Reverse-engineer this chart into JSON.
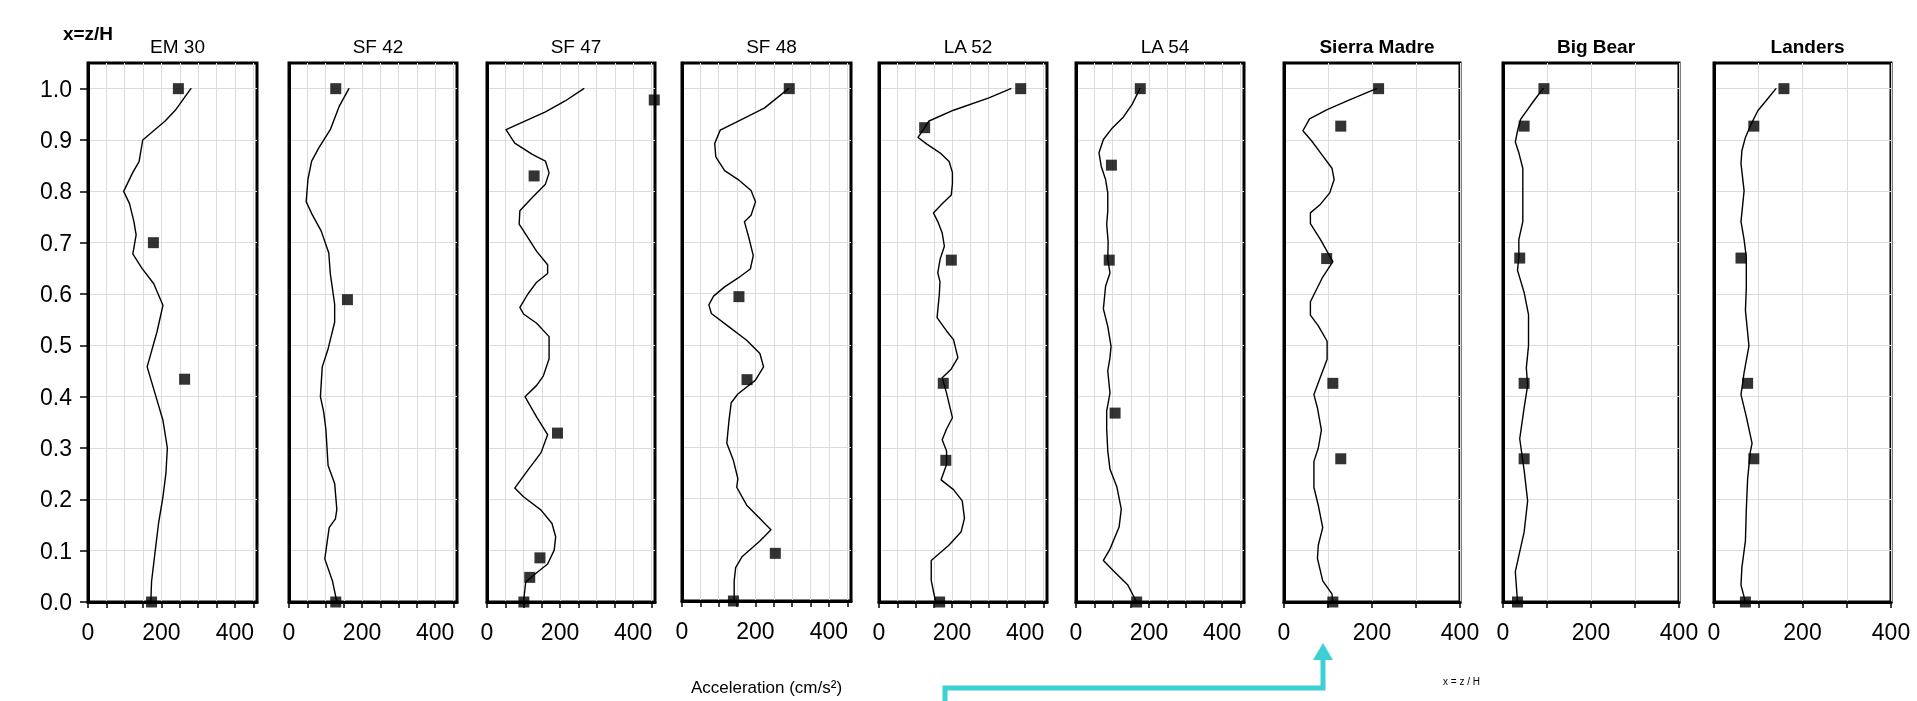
{
  "chart_data": [
    {
      "type": "line",
      "title": "EM 30",
      "ylabel": "x=z/H",
      "xlim": [
        0,
        460
      ],
      "ylim": [
        0,
        1.05
      ],
      "grid": true,
      "xticks": [
        0,
        {
          "value": 50,
          "label": null
        },
        {
          "value": 100,
          "label": null
        },
        {
          "value": 150,
          "label": null
        },
        200,
        {
          "value": 250,
          "label": null
        },
        {
          "value": 300,
          "label": null
        },
        {
          "value": 350,
          "label": null
        },
        400,
        {
          "value": 450,
          "label": null
        }
      ],
      "yticks": [
        {
          "value": 0,
          "label": "0.0"
        },
        {
          "value": 0.1,
          "label": "0.1"
        },
        {
          "value": 0.2,
          "label": "0.2"
        },
        {
          "value": 0.3,
          "label": "0.3"
        },
        {
          "value": 0.4,
          "label": "0.4"
        },
        {
          "value": 0.5,
          "label": "0.5"
        },
        {
          "value": 0.6,
          "label": "0.6"
        },
        {
          "value": 0.7,
          "label": "0.7"
        },
        {
          "value": 0.8,
          "label": "0.8"
        },
        {
          "value": 0.9,
          "label": "0.9"
        },
        {
          "value": 1,
          "label": "1.0"
        }
      ],
      "series": [
        {
          "type": "line",
          "color": "#000000",
          "marker": "none",
          "x": [
            280,
            240,
            210,
            149,
            139,
            122,
            97,
            113,
            125,
            131,
            122,
            147,
            179,
            204,
            188,
            161,
            185,
            204,
            216,
            212,
            204,
            192,
            183,
            173,
            171
          ],
          "values": [
            1.0,
            0.96,
            0.937,
            0.9,
            0.858,
            0.837,
            0.8,
            0.776,
            0.741,
            0.715,
            0.678,
            0.65,
            0.62,
            0.578,
            0.527,
            0.458,
            0.4,
            0.354,
            0.3,
            0.25,
            0.205,
            0.153,
            0.1,
            0.04,
            0.0
          ]
        },
        {
          "type": "scatter",
          "color": "#000000",
          "marker": "square",
          "x": [
            246,
            178,
            263,
            173
          ],
          "values": [
            1.0,
            0.7,
            0.434,
            0.0
          ]
        }
      ]
    },
    {
      "type": "line",
      "title": "SF 42",
      "xlim": [
        0,
        460
      ],
      "ylim": [
        0,
        1.05
      ],
      "grid": true,
      "tick_labels": "x",
      "xticks": [
        0,
        {
          "value": 50,
          "label": null
        },
        {
          "value": 100,
          "label": null
        },
        {
          "value": 150,
          "label": null
        },
        200,
        {
          "value": 250,
          "label": null
        },
        {
          "value": 300,
          "label": null
        },
        {
          "value": 350,
          "label": null
        },
        400,
        {
          "value": 450,
          "label": null
        }
      ],
      "yticks": [
        0,
        0.1,
        0.2,
        0.3,
        0.4,
        0.5,
        0.6,
        0.7,
        0.8,
        0.9,
        1
      ],
      "series": [
        {
          "type": "line",
          "color": "#000000",
          "marker": "none",
          "x": [
            164,
            137,
            113,
            82,
            62,
            52,
            47,
            64,
            88,
            109,
            113,
            125,
            125,
            107,
            91,
            86,
            95,
            101,
            107,
            125,
            131,
            127,
            110,
            98,
            119,
            131
          ],
          "values": [
            1.0,
            0.965,
            0.92,
            0.885,
            0.859,
            0.824,
            0.78,
            0.754,
            0.723,
            0.68,
            0.64,
            0.58,
            0.545,
            0.493,
            0.458,
            0.4,
            0.37,
            0.336,
            0.266,
            0.231,
            0.18,
            0.162,
            0.145,
            0.084,
            0.041,
            0.0
          ]
        },
        {
          "type": "scatter",
          "color": "#000000",
          "marker": "square",
          "x": [
            128,
            160,
            128
          ],
          "values": [
            1.0,
            0.589,
            0.0
          ]
        }
      ]
    },
    {
      "type": "line",
      "title": "SF 47",
      "xlim": [
        0,
        460
      ],
      "ylim": [
        0,
        1.05
      ],
      "grid": true,
      "tick_labels": "x",
      "xticks": [
        0,
        {
          "value": 50,
          "label": null
        },
        {
          "value": 100,
          "label": null
        },
        {
          "value": 150,
          "label": null
        },
        200,
        {
          "value": 250,
          "label": null
        },
        {
          "value": 300,
          "label": null
        },
        {
          "value": 350,
          "label": null
        },
        400,
        {
          "value": 450,
          "label": null
        }
      ],
      "yticks": [
        0,
        0.1,
        0.2,
        0.3,
        0.4,
        0.5,
        0.6,
        0.7,
        0.8,
        0.9,
        1
      ],
      "series": [
        {
          "type": "line",
          "color": "#000000",
          "marker": "none",
          "x": [
            265,
            214,
            160,
            52,
            76,
            124,
            160,
            170,
            160,
            124,
            90,
            88,
            112,
            136,
            166,
            166,
            136,
            112,
            90,
            100,
            136,
            170,
            170,
            154,
            136,
            104,
            136,
            166,
            148,
            112,
            76,
            100,
            148,
            178,
            188,
            184,
            166,
            136,
            106,
            100
          ],
          "values": [
            1.0,
            0.976,
            0.955,
            0.92,
            0.894,
            0.872,
            0.859,
            0.836,
            0.814,
            0.788,
            0.762,
            0.736,
            0.71,
            0.683,
            0.657,
            0.64,
            0.623,
            0.6,
            0.574,
            0.561,
            0.543,
            0.517,
            0.474,
            0.44,
            0.422,
            0.4,
            0.36,
            0.326,
            0.291,
            0.257,
            0.222,
            0.205,
            0.179,
            0.153,
            0.127,
            0.101,
            0.074,
            0.057,
            0.039,
            0.0
          ]
        },
        {
          "type": "scatter",
          "color": "#000000",
          "marker": "square",
          "x": [
            458,
            129,
            193,
            145,
            117,
            101
          ],
          "values": [
            0.978,
            0.83,
            0.329,
            0.086,
            0.048,
            0.0
          ]
        }
      ]
    },
    {
      "type": "line",
      "title": "SF 48",
      "xlabel": "Acceleration (cm/s²)",
      "xlim": [
        0,
        460
      ],
      "ylim": [
        0,
        1.05
      ],
      "grid": true,
      "tick_labels": "x",
      "xticks": [
        0,
        {
          "value": 50,
          "label": null
        },
        {
          "value": 100,
          "label": null
        },
        {
          "value": 150,
          "label": null
        },
        200,
        {
          "value": 250,
          "label": null
        },
        {
          "value": 300,
          "label": null
        },
        {
          "value": 350,
          "label": null
        },
        400,
        {
          "value": 450,
          "label": null
        }
      ],
      "yticks": [
        0,
        0.1,
        0.2,
        0.3,
        0.4,
        0.5,
        0.6,
        0.7,
        0.8,
        0.9,
        1
      ],
      "series": [
        {
          "type": "line",
          "color": "#000000",
          "marker": "none",
          "x": [
            290,
            224,
            152,
            104,
            89,
            92,
            116,
            152,
            188,
            200,
            188,
            170,
            182,
            194,
            186,
            152,
            116,
            86,
            73,
            80,
            128,
            176,
            212,
            222,
            200,
            152,
            134,
            128,
            122,
            140,
            152,
            149,
            176,
            212,
            242,
            212,
            164,
            146,
            142,
            142
          ],
          "values": [
            1.0,
            0.962,
            0.936,
            0.919,
            0.893,
            0.867,
            0.84,
            0.823,
            0.801,
            0.779,
            0.753,
            0.74,
            0.709,
            0.674,
            0.648,
            0.63,
            0.613,
            0.595,
            0.578,
            0.561,
            0.535,
            0.509,
            0.483,
            0.457,
            0.431,
            0.404,
            0.387,
            0.353,
            0.308,
            0.274,
            0.239,
            0.222,
            0.187,
            0.161,
            0.139,
            0.117,
            0.087,
            0.065,
            0.039,
            0.0
          ]
        },
        {
          "type": "scatter",
          "color": "#000000",
          "marker": "square",
          "x": [
            292,
            155,
            177,
            254,
            140
          ],
          "values": [
            1.0,
            0.594,
            0.432,
            0.093,
            0.0
          ]
        }
      ]
    },
    {
      "type": "line",
      "title": "LA 52",
      "xlim": [
        0,
        460
      ],
      "ylim": [
        0,
        1.05
      ],
      "grid": true,
      "tick_labels": "x",
      "xticks": [
        0,
        {
          "value": 50,
          "label": null
        },
        {
          "value": 100,
          "label": null
        },
        {
          "value": 150,
          "label": null
        },
        200,
        {
          "value": 250,
          "label": null
        },
        {
          "value": 300,
          "label": null
        },
        {
          "value": 350,
          "label": null
        },
        400,
        {
          "value": 450,
          "label": null
        }
      ],
      "yticks": [
        0,
        0.1,
        0.2,
        0.3,
        0.4,
        0.5,
        0.6,
        0.7,
        0.8,
        0.9,
        1
      ],
      "series": [
        {
          "type": "line",
          "color": "#000000",
          "marker": "none",
          "x": [
            361,
            301,
            204,
            137,
            107,
            131,
            167,
            192,
            201,
            201,
            198,
            173,
            149,
            161,
            173,
            179,
            167,
            161,
            167,
            165,
            159,
            185,
            204,
            216,
            198,
            173,
            185,
            201,
            185,
            173,
            185,
            185,
            170,
            204,
            228,
            234,
            225,
            192,
            143,
            143,
            155
          ],
          "values": [
            1.0,
            0.982,
            0.958,
            0.937,
            0.905,
            0.892,
            0.875,
            0.858,
            0.837,
            0.815,
            0.793,
            0.776,
            0.758,
            0.741,
            0.719,
            0.693,
            0.667,
            0.641,
            0.624,
            0.598,
            0.554,
            0.528,
            0.511,
            0.476,
            0.454,
            0.437,
            0.407,
            0.359,
            0.337,
            0.316,
            0.294,
            0.268,
            0.238,
            0.219,
            0.197,
            0.163,
            0.137,
            0.111,
            0.081,
            0.042,
            0.0
          ]
        },
        {
          "type": "scatter",
          "color": "#000000",
          "marker": "square",
          "x": [
            388,
            125,
            198,
            176,
            183,
            166
          ],
          "values": [
            1.0,
            0.924,
            0.666,
            0.426,
            0.276,
            0.0
          ]
        }
      ]
    },
    {
      "type": "line",
      "title": "LA 54",
      "xlim": [
        0,
        460
      ],
      "ylim": [
        0,
        1.05
      ],
      "grid": true,
      "tick_labels": "x",
      "xticks": [
        0,
        {
          "value": 50,
          "label": null
        },
        {
          "value": 100,
          "label": null
        },
        {
          "value": 150,
          "label": null
        },
        200,
        {
          "value": 250,
          "label": null
        },
        {
          "value": 300,
          "label": null
        },
        {
          "value": 350,
          "label": null
        },
        400,
        {
          "value": 450,
          "label": null
        }
      ],
      "yticks": [
        0,
        0.1,
        0.2,
        0.3,
        0.4,
        0.5,
        0.6,
        0.7,
        0.8,
        0.9,
        1
      ],
      "series": [
        {
          "type": "line",
          "color": "#000000",
          "marker": "none",
          "x": [
            175,
            154,
            130,
            99,
            75,
            63,
            69,
            81,
            87,
            87,
            84,
            88,
            87,
            93,
            81,
            75,
            87,
            96,
            93,
            87,
            93,
            84,
            84,
            87,
            93,
            112,
            124,
            118,
            93,
            75,
            105,
            142,
            166
          ],
          "values": [
            1.0,
            0.97,
            0.945,
            0.923,
            0.901,
            0.875,
            0.849,
            0.823,
            0.797,
            0.762,
            0.736,
            0.702,
            0.667,
            0.641,
            0.615,
            0.571,
            0.537,
            0.498,
            0.476,
            0.45,
            0.407,
            0.372,
            0.337,
            0.294,
            0.259,
            0.224,
            0.181,
            0.146,
            0.103,
            0.081,
            0.059,
            0.033,
            0.0
          ]
        },
        {
          "type": "scatter",
          "color": "#000000",
          "marker": "square",
          "x": [
            176,
            97,
            91,
            107,
            166
          ],
          "values": [
            1.0,
            0.851,
            0.666,
            0.368,
            0.0
          ]
        }
      ]
    },
    {
      "type": "line",
      "title": "Sierra Madre",
      "xlim": [
        0,
        400
      ],
      "ylim": [
        0,
        1.05
      ],
      "grid": true,
      "tick_labels": "x",
      "annotations": [
        "x = z / H"
      ],
      "xticks": [
        0,
        {
          "value": 100,
          "label": null
        },
        200,
        {
          "value": 300,
          "label": null
        },
        400
      ],
      "yticks": [
        0,
        0.1,
        0.2,
        0.3,
        0.4,
        0.5,
        0.6,
        0.7,
        0.8,
        0.9,
        1
      ],
      "series": [
        {
          "type": "line",
          "color": "#000000",
          "marker": "none",
          "x": [
            210,
            149,
            98,
            58,
            43,
            63,
            83,
            109,
            114,
            104,
            83,
            60,
            60,
            83,
            111,
            88,
            60,
            60,
            78,
            98,
            98,
            83,
            68,
            76,
            85,
            78,
            68,
            68,
            78,
            88,
            78,
            76,
            88,
            109,
            111
          ],
          "values": [
            1.0,
            0.978,
            0.959,
            0.941,
            0.918,
            0.898,
            0.875,
            0.845,
            0.823,
            0.797,
            0.775,
            0.758,
            0.737,
            0.706,
            0.663,
            0.633,
            0.585,
            0.559,
            0.538,
            0.508,
            0.473,
            0.439,
            0.404,
            0.378,
            0.335,
            0.3,
            0.274,
            0.223,
            0.188,
            0.145,
            0.111,
            0.085,
            0.041,
            0.016,
            0.0
          ]
        },
        {
          "type": "scatter",
          "color": "#000000",
          "marker": "square",
          "x": [
            215,
            129,
            97,
            111,
            129,
            111
          ],
          "values": [
            1.0,
            0.927,
            0.669,
            0.426,
            0.279,
            0.0
          ]
        }
      ]
    },
    {
      "type": "line",
      "title": "Big Bear",
      "xlim": [
        0,
        400
      ],
      "ylim": [
        0,
        1.05
      ],
      "grid": true,
      "tick_labels": "x",
      "xticks": [
        0,
        {
          "value": 100,
          "label": null
        },
        200,
        {
          "value": 300,
          "label": null
        },
        400
      ],
      "yticks": [
        0,
        0.1,
        0.2,
        0.3,
        0.4,
        0.5,
        0.6,
        0.7,
        0.8,
        0.9,
        1
      ],
      "series": [
        {
          "type": "line",
          "color": "#000000",
          "marker": "none",
          "x": [
            91,
            68,
            40,
            33,
            28,
            36,
            45,
            45,
            45,
            36,
            36,
            33,
            48,
            58,
            58,
            53,
            56,
            48,
            38,
            48,
            56,
            48,
            28,
            33
          ],
          "values": [
            1.0,
            0.974,
            0.94,
            0.918,
            0.896,
            0.875,
            0.845,
            0.81,
            0.741,
            0.706,
            0.672,
            0.646,
            0.603,
            0.56,
            0.499,
            0.456,
            0.422,
            0.378,
            0.318,
            0.257,
            0.197,
            0.136,
            0.059,
            0.0
          ]
        },
        {
          "type": "scatter",
          "color": "#000000",
          "marker": "square",
          "x": [
            93,
            48,
            38,
            48,
            48,
            33
          ],
          "values": [
            1.0,
            0.927,
            0.67,
            0.426,
            0.279,
            0.0
          ]
        }
      ]
    },
    {
      "type": "line",
      "title": "Landers",
      "xlim": [
        0,
        400
      ],
      "ylim": [
        0,
        1.05
      ],
      "grid": true,
      "tick_labels": "x",
      "xticks": [
        0,
        {
          "value": 100,
          "label": null
        },
        200,
        {
          "value": 300,
          "label": null
        },
        400
      ],
      "yticks": [
        0,
        0.1,
        0.2,
        0.3,
        0.4,
        0.5,
        0.6,
        0.7,
        0.8,
        0.9,
        1
      ],
      "series": [
        {
          "type": "line",
          "color": "#000000",
          "marker": "none",
          "x": [
            140,
            119,
            99,
            84,
            71,
            63,
            61,
            68,
            61,
            68,
            73,
            73,
            71,
            79,
            68,
            61,
            73,
            86,
            82,
            76,
            73,
            71,
            63,
            61,
            71
          ],
          "values": [
            1.0,
            0.978,
            0.957,
            0.931,
            0.905,
            0.879,
            0.854,
            0.801,
            0.741,
            0.706,
            0.672,
            0.611,
            0.568,
            0.499,
            0.447,
            0.404,
            0.361,
            0.309,
            0.292,
            0.24,
            0.18,
            0.119,
            0.067,
            0.033,
            0.0
          ]
        },
        {
          "type": "scatter",
          "color": "#000000",
          "marker": "square",
          "x": [
            158,
            90,
            61,
            76,
            90,
            71
          ],
          "values": [
            1.0,
            0.927,
            0.67,
            0.426,
            0.279,
            0.0
          ]
        }
      ]
    }
  ]
}
